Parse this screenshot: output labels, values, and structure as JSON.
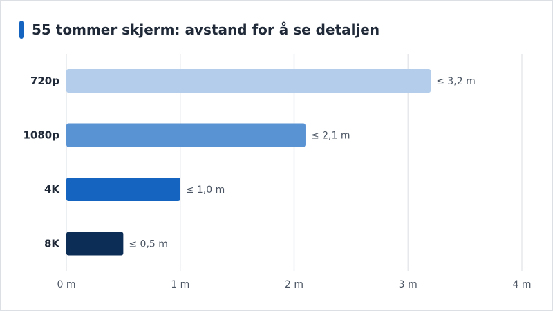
{
  "title": "55 tommer skjerm: avstand for å se detaljen",
  "colors": {
    "accent": "#1565c0",
    "bars": [
      "#b3cdea",
      "#5a93d4",
      "#1565c0",
      "#0c2d55"
    ]
  },
  "chart_data": {
    "type": "bar",
    "orientation": "horizontal",
    "title": "55 tommer skjerm: avstand for å se detaljen",
    "categories": [
      "720p",
      "1080p",
      "4K",
      "8K"
    ],
    "values": [
      3.2,
      2.1,
      1.0,
      0.5
    ],
    "value_labels": [
      "≤ 3,2 m",
      "≤ 2,1 m",
      "≤ 1,0 m",
      "≤ 0,5 m"
    ],
    "xlim": [
      0,
      4
    ],
    "x_ticks": [
      0,
      1,
      2,
      3,
      4
    ],
    "x_tick_labels": [
      "0 m",
      "1 m",
      "2 m",
      "3 m",
      "4 m"
    ],
    "grid": true,
    "legend": "none"
  }
}
